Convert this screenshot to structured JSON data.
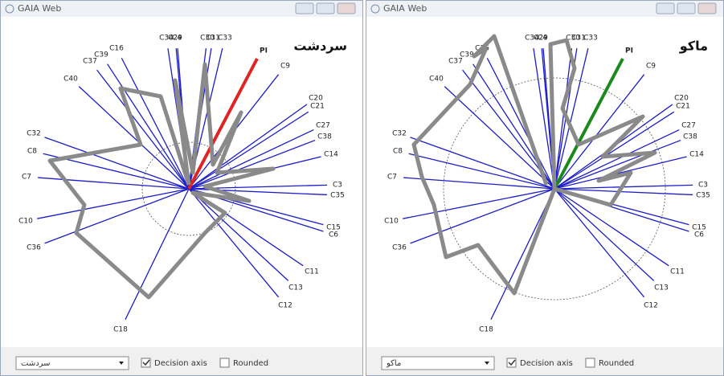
{
  "windows": [
    {
      "title": "GAIA Web",
      "chart_title": "سردشت",
      "decision_label": "PI",
      "decision_color": "#e02424",
      "axis_labels": [
        "C34",
        "C4",
        "C29",
        "C30",
        "C31",
        "C33",
        "C9",
        "C16",
        "C39",
        "C37",
        "C40",
        "C20",
        "C21",
        "C27",
        "C38",
        "C14",
        "C32",
        "C8",
        "C7",
        "C3",
        "C35",
        "C10",
        "C15",
        "C6",
        "C36",
        "C11",
        "C13",
        "C12",
        "C18"
      ],
      "selector": "سردشت",
      "decision_axis": "Decision axis",
      "rounded": "Rounded"
    },
    {
      "title": "GAIA Web",
      "chart_title": "ماکو",
      "decision_label": "PI",
      "decision_color": "#1a8a1a",
      "axis_labels": [
        "C34",
        "C4",
        "C29",
        "C30",
        "C31",
        "C33",
        "C9",
        "C16",
        "C39",
        "C37",
        "C40",
        "C20",
        "C21",
        "C27",
        "C38",
        "C14",
        "C32",
        "C8",
        "C7",
        "C3",
        "C35",
        "C10",
        "C15",
        "C6",
        "C36",
        "C11",
        "C13",
        "C12",
        "C18"
      ],
      "selector": "ماکو",
      "decision_axis": "Decision axis",
      "rounded": "Rounded"
    }
  ]
}
